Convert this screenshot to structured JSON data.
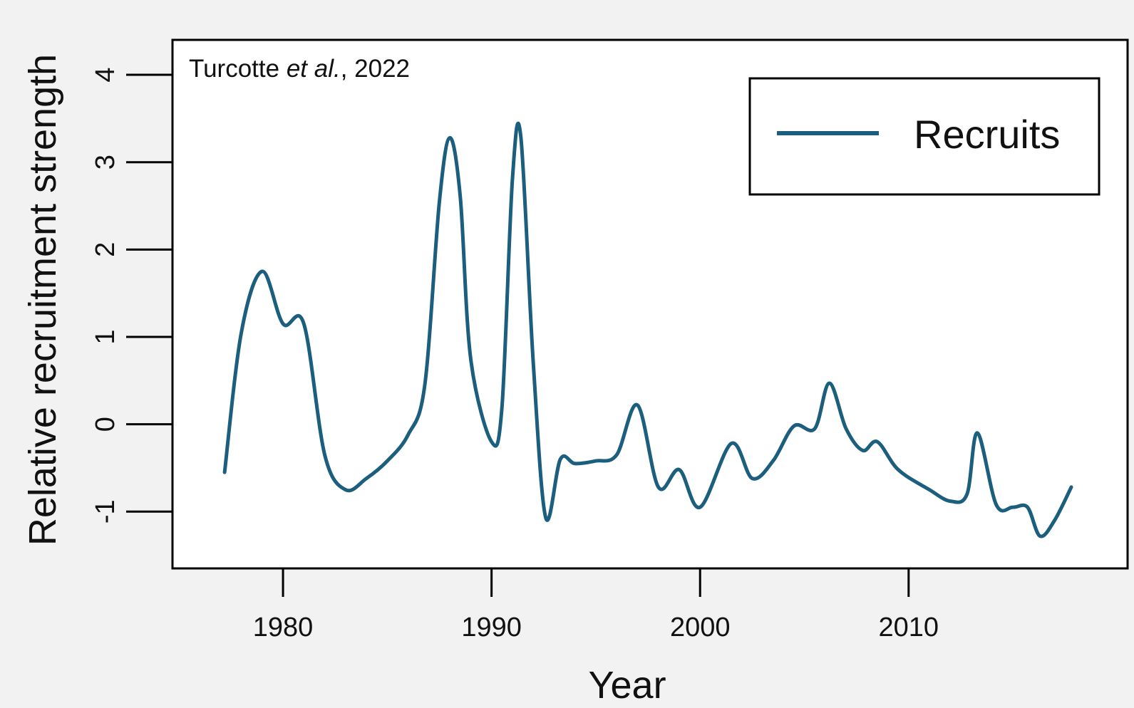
{
  "chart_data": {
    "type": "line",
    "xlabel": "Year",
    "ylabel": "Relative recruitment strength",
    "annotation": {
      "author": "Turcotte ",
      "etal": "et al.",
      "year_suffix": ", 2022"
    },
    "xlim": [
      1974.7,
      2020.5
    ],
    "ylim": [
      -1.65,
      4.4
    ],
    "x_ticks": [
      {
        "value": 1980,
        "label": "1980"
      },
      {
        "value": 1990,
        "label": "1990"
      },
      {
        "value": 2000,
        "label": "2000"
      },
      {
        "value": 2010,
        "label": "2010"
      }
    ],
    "y_ticks": [
      {
        "value": -1,
        "label": "-1"
      },
      {
        "value": 0,
        "label": "0"
      },
      {
        "value": 1,
        "label": "1"
      },
      {
        "value": 2,
        "label": "2"
      },
      {
        "value": 3,
        "label": "3"
      },
      {
        "value": 4,
        "label": "4"
      }
    ],
    "legend": {
      "position": "top-right",
      "entries": [
        "Recruits"
      ]
    },
    "series": [
      {
        "name": "Recruits",
        "color": "#1b5e7e",
        "points": [
          [
            1977.2,
            -0.55
          ],
          [
            1978.0,
            1.05
          ],
          [
            1979.0,
            1.75
          ],
          [
            1980.0,
            1.15
          ],
          [
            1981.0,
            1.15
          ],
          [
            1982.0,
            -0.35
          ],
          [
            1983.0,
            -0.75
          ],
          [
            1984.0,
            -0.62
          ],
          [
            1985.0,
            -0.42
          ],
          [
            1986.0,
            -0.12
          ],
          [
            1986.8,
            0.45
          ],
          [
            1987.5,
            2.55
          ],
          [
            1988.0,
            3.28
          ],
          [
            1988.5,
            2.6
          ],
          [
            1989.0,
            0.75
          ],
          [
            1990.0,
            -0.2
          ],
          [
            1990.5,
            0.2
          ],
          [
            1991.0,
            2.8
          ],
          [
            1991.4,
            3.3
          ],
          [
            1992.0,
            0.7
          ],
          [
            1992.6,
            -1.07
          ],
          [
            1993.3,
            -0.4
          ],
          [
            1994.0,
            -0.45
          ],
          [
            1995.0,
            -0.42
          ],
          [
            1996.0,
            -0.35
          ],
          [
            1997.0,
            0.22
          ],
          [
            1998.0,
            -0.72
          ],
          [
            1999.0,
            -0.52
          ],
          [
            2000.0,
            -0.95
          ],
          [
            2001.5,
            -0.22
          ],
          [
            2002.5,
            -0.62
          ],
          [
            2003.5,
            -0.42
          ],
          [
            2004.5,
            -0.02
          ],
          [
            2005.5,
            -0.05
          ],
          [
            2006.2,
            0.47
          ],
          [
            2007.0,
            -0.05
          ],
          [
            2007.8,
            -0.3
          ],
          [
            2008.5,
            -0.2
          ],
          [
            2009.5,
            -0.52
          ],
          [
            2011.0,
            -0.75
          ],
          [
            2012.0,
            -0.88
          ],
          [
            2012.8,
            -0.8
          ],
          [
            2013.3,
            -0.1
          ],
          [
            2014.2,
            -0.92
          ],
          [
            2015.0,
            -0.95
          ],
          [
            2015.7,
            -0.95
          ],
          [
            2016.3,
            -1.28
          ],
          [
            2017.0,
            -1.1
          ],
          [
            2017.8,
            -0.72
          ]
        ]
      }
    ]
  }
}
